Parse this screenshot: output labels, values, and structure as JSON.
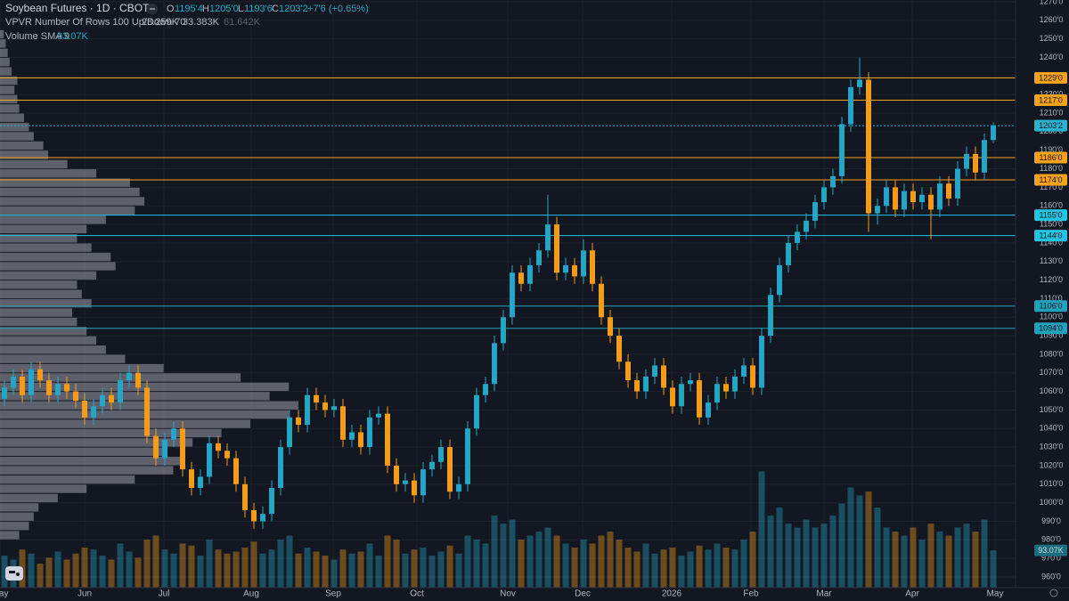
{
  "header": {
    "title": "Soybean Futures · 1D · CBOT",
    "o_label": "O",
    "open": "1195'4",
    "h_label": "H",
    "high": "1205'0",
    "l_label": "L",
    "low": "1193'6",
    "c_label": "C",
    "close": "1203'2",
    "change": "+7'6 (+0.65%)",
    "vpvr_label": "VPVR Number Of Rows 100 Up/Down 70",
    "vpvr_up": "28.259K",
    "vpvr_down": "33.383K",
    "vpvr_total": "61.642K",
    "volume_label": "Volume SMA 9",
    "volume_value": "93.07K"
  },
  "chart_data": {
    "type": "candlestick",
    "up_color": "#26a6c4",
    "down_color": "#f39c1b",
    "ylim": [
      960,
      1270
    ],
    "yticks": [
      {
        "value": 1270,
        "label": "1270'0"
      },
      {
        "value": 1260,
        "label": "1260'0"
      },
      {
        "value": 1250,
        "label": "1250'0"
      },
      {
        "value": 1240,
        "label": "1240'0"
      },
      {
        "value": 1230,
        "label": "1230'0"
      },
      {
        "value": 1220,
        "label": "1220'0"
      },
      {
        "value": 1210,
        "label": "1210'0"
      },
      {
        "value": 1200,
        "label": "1200'0"
      },
      {
        "value": 1190,
        "label": "1190'0"
      },
      {
        "value": 1180,
        "label": "1180'0"
      },
      {
        "value": 1170,
        "label": "1170'0"
      },
      {
        "value": 1160,
        "label": "1160'0"
      },
      {
        "value": 1150,
        "label": "1150'0"
      },
      {
        "value": 1140,
        "label": "1140'0"
      },
      {
        "value": 1130,
        "label": "1130'0"
      },
      {
        "value": 1120,
        "label": "1120'0"
      },
      {
        "value": 1110,
        "label": "1110'0"
      },
      {
        "value": 1100,
        "label": "1100'0"
      },
      {
        "value": 1090,
        "label": "1090'0"
      },
      {
        "value": 1080,
        "label": "1080'0"
      },
      {
        "value": 1070,
        "label": "1070'0"
      },
      {
        "value": 1060,
        "label": "1060'0"
      },
      {
        "value": 1050,
        "label": "1050'0"
      },
      {
        "value": 1040,
        "label": "1040'0"
      },
      {
        "value": 1030,
        "label": "1030'0"
      },
      {
        "value": 1020,
        "label": "1020'0"
      },
      {
        "value": 1010,
        "label": "1010'0"
      },
      {
        "value": 1000,
        "label": "1000'0"
      },
      {
        "value": 990,
        "label": "990'0"
      },
      {
        "value": 980,
        "label": "980'0"
      },
      {
        "value": 970,
        "label": "970'0"
      },
      {
        "value": 960,
        "label": "960'0"
      }
    ],
    "xticks": [
      {
        "value": -0.5,
        "label": "May"
      },
      {
        "value": 9,
        "label": "Jun"
      },
      {
        "value": 17.9,
        "label": "Jul"
      },
      {
        "value": 27.7,
        "label": "Aug"
      },
      {
        "value": 36.9,
        "label": "Sep"
      },
      {
        "value": 46.3,
        "label": "Oct"
      },
      {
        "value": 56.5,
        "label": "Nov"
      },
      {
        "value": 64.9,
        "label": "Dec"
      },
      {
        "value": 74.9,
        "label": "2026"
      },
      {
        "value": 83.8,
        "label": "Feb"
      },
      {
        "value": 92,
        "label": "Mar"
      },
      {
        "value": 101.9,
        "label": "Apr"
      },
      {
        "value": 111.2,
        "label": "May"
      }
    ],
    "levels": [
      {
        "value": 1229,
        "label": "1229'0",
        "color": "#f7a21b"
      },
      {
        "value": 1217,
        "label": "1217'0",
        "color": "#f7a21b"
      },
      {
        "value": 1203.25,
        "label": "1203'2",
        "color": "#2ab3cf",
        "dashed": true
      },
      {
        "value": 1186,
        "label": "1186'0",
        "color": "#f7a21b"
      },
      {
        "value": 1174,
        "label": "1174'0",
        "color": "#f7a21b"
      },
      {
        "value": 1155,
        "label": "1155'0",
        "color": "#22c4e0"
      },
      {
        "value": 1144,
        "label": "1144'0",
        "color": "#22c4e0"
      },
      {
        "value": 1106,
        "label": "1106'0",
        "color": "#1fa3bd"
      },
      {
        "value": 1094,
        "label": "1094'0",
        "color": "#1fa3bd"
      }
    ],
    "ohlc": [
      [
        1056,
        1066,
        1052,
        1062
      ],
      [
        1062,
        1072,
        1058,
        1068
      ],
      [
        1068,
        1072,
        1054,
        1058
      ],
      [
        1058,
        1076,
        1054,
        1072
      ],
      [
        1072,
        1076,
        1062,
        1066
      ],
      [
        1066,
        1070,
        1054,
        1058
      ],
      [
        1058,
        1068,
        1054,
        1064
      ],
      [
        1064,
        1068,
        1056,
        1060
      ],
      [
        1060,
        1064,
        1051,
        1055
      ],
      [
        1055,
        1059,
        1042,
        1046
      ],
      [
        1046,
        1056,
        1042,
        1052
      ],
      [
        1052,
        1062,
        1048,
        1058
      ],
      [
        1058,
        1062,
        1050,
        1054
      ],
      [
        1054,
        1070,
        1050,
        1066
      ],
      [
        1066,
        1074,
        1062,
        1070
      ],
      [
        1070,
        1074,
        1058,
        1062
      ],
      [
        1062,
        1066,
        1032,
        1036
      ],
      [
        1036,
        1040,
        1020,
        1024
      ],
      [
        1024,
        1038,
        1020,
        1034
      ],
      [
        1034,
        1044,
        1030,
        1040
      ],
      [
        1040,
        1044,
        1014,
        1018
      ],
      [
        1018,
        1022,
        1004,
        1008
      ],
      [
        1008,
        1018,
        1004,
        1014
      ],
      [
        1014,
        1036,
        1010,
        1032
      ],
      [
        1032,
        1036,
        1024,
        1028
      ],
      [
        1028,
        1032,
        1020,
        1024
      ],
      [
        1024,
        1028,
        1006,
        1010
      ],
      [
        1010,
        1014,
        992,
        996
      ],
      [
        996,
        1000,
        986,
        990
      ],
      [
        990,
        998,
        986,
        994
      ],
      [
        994,
        1012,
        990,
        1008
      ],
      [
        1008,
        1034,
        1004,
        1030
      ],
      [
        1030,
        1050,
        1026,
        1046
      ],
      [
        1046,
        1050,
        1038,
        1042
      ],
      [
        1042,
        1062,
        1038,
        1058
      ],
      [
        1058,
        1062,
        1050,
        1054
      ],
      [
        1054,
        1058,
        1046,
        1050
      ],
      [
        1050,
        1056,
        1046,
        1052
      ],
      [
        1052,
        1056,
        1030,
        1034
      ],
      [
        1034,
        1042,
        1030,
        1038
      ],
      [
        1038,
        1042,
        1026,
        1030
      ],
      [
        1030,
        1050,
        1026,
        1046
      ],
      [
        1046,
        1052,
        1042,
        1048
      ],
      [
        1048,
        1052,
        1016,
        1020
      ],
      [
        1020,
        1024,
        1006,
        1010
      ],
      [
        1010,
        1016,
        1006,
        1012
      ],
      [
        1012,
        1016,
        1000,
        1004
      ],
      [
        1004,
        1022,
        1000,
        1018
      ],
      [
        1018,
        1026,
        1014,
        1022
      ],
      [
        1022,
        1034,
        1018,
        1030
      ],
      [
        1030,
        1034,
        1002,
        1006
      ],
      [
        1006,
        1014,
        1002,
        1010
      ],
      [
        1010,
        1044,
        1006,
        1040
      ],
      [
        1040,
        1062,
        1036,
        1058
      ],
      [
        1058,
        1068,
        1054,
        1064
      ],
      [
        1064,
        1090,
        1060,
        1086
      ],
      [
        1086,
        1104,
        1082,
        1100
      ],
      [
        1100,
        1128,
        1096,
        1124
      ],
      [
        1124,
        1128,
        1114,
        1118
      ],
      [
        1118,
        1132,
        1114,
        1128
      ],
      [
        1128,
        1140,
        1124,
        1136
      ],
      [
        1136,
        1166,
        1132,
        1150
      ],
      [
        1150,
        1154,
        1120,
        1124
      ],
      [
        1124,
        1132,
        1120,
        1128
      ],
      [
        1128,
        1132,
        1118,
        1122
      ],
      [
        1122,
        1142,
        1118,
        1136
      ],
      [
        1136,
        1140,
        1114,
        1118
      ],
      [
        1118,
        1122,
        1096,
        1100
      ],
      [
        1100,
        1104,
        1086,
        1090
      ],
      [
        1090,
        1094,
        1072,
        1076
      ],
      [
        1076,
        1080,
        1062,
        1066
      ],
      [
        1066,
        1070,
        1056,
        1060
      ],
      [
        1060,
        1072,
        1056,
        1068
      ],
      [
        1068,
        1078,
        1064,
        1074
      ],
      [
        1074,
        1078,
        1058,
        1062
      ],
      [
        1062,
        1066,
        1048,
        1052
      ],
      [
        1052,
        1068,
        1048,
        1064
      ],
      [
        1064,
        1070,
        1060,
        1066
      ],
      [
        1066,
        1070,
        1042,
        1046
      ],
      [
        1046,
        1058,
        1042,
        1054
      ],
      [
        1054,
        1068,
        1050,
        1064
      ],
      [
        1064,
        1068,
        1056,
        1060
      ],
      [
        1060,
        1072,
        1056,
        1068
      ],
      [
        1068,
        1078,
        1064,
        1074
      ],
      [
        1074,
        1078,
        1058,
        1062
      ],
      [
        1062,
        1094,
        1058,
        1090
      ],
      [
        1090,
        1116,
        1086,
        1112
      ],
      [
        1112,
        1132,
        1108,
        1128
      ],
      [
        1128,
        1144,
        1124,
        1140
      ],
      [
        1140,
        1150,
        1136,
        1146
      ],
      [
        1146,
        1156,
        1142,
        1152
      ],
      [
        1152,
        1166,
        1148,
        1162
      ],
      [
        1162,
        1174,
        1158,
        1170
      ],
      [
        1170,
        1180,
        1166,
        1176
      ],
      [
        1176,
        1208,
        1172,
        1204
      ],
      [
        1204,
        1228,
        1200,
        1224
      ],
      [
        1224,
        1240,
        1220,
        1228
      ],
      [
        1228,
        1232,
        1146,
        1156
      ],
      [
        1156,
        1164,
        1150,
        1160
      ],
      [
        1160,
        1174,
        1156,
        1170
      ],
      [
        1170,
        1174,
        1154,
        1158
      ],
      [
        1158,
        1172,
        1154,
        1168
      ],
      [
        1168,
        1172,
        1158,
        1162
      ],
      [
        1162,
        1170,
        1158,
        1166
      ],
      [
        1166,
        1170,
        1142,
        1158
      ],
      [
        1158,
        1176,
        1154,
        1172
      ],
      [
        1172,
        1176,
        1160,
        1164
      ],
      [
        1164,
        1184,
        1160,
        1180
      ],
      [
        1180,
        1192,
        1176,
        1188
      ],
      [
        1188,
        1192,
        1174,
        1178
      ],
      [
        1178,
        1199,
        1174,
        1195.5
      ],
      [
        1195.5,
        1205,
        1193.75,
        1203.25
      ]
    ],
    "volume": {
      "ylim": [
        0,
        300
      ],
      "values": [
        80,
        70,
        95,
        85,
        60,
        75,
        90,
        70,
        85,
        100,
        95,
        80,
        70,
        110,
        90,
        75,
        120,
        130,
        95,
        85,
        110,
        105,
        80,
        120,
        95,
        85,
        90,
        100,
        115,
        85,
        95,
        120,
        130,
        85,
        100,
        90,
        80,
        70,
        95,
        85,
        90,
        110,
        80,
        130,
        120,
        85,
        95,
        100,
        80,
        90,
        105,
        85,
        130,
        120,
        110,
        180,
        160,
        170,
        120,
        130,
        140,
        150,
        130,
        110,
        100,
        120,
        110,
        130,
        140,
        120,
        100,
        90,
        110,
        85,
        95,
        100,
        80,
        90,
        105,
        95,
        110,
        100,
        95,
        120,
        140,
        290,
        180,
        200,
        160,
        150,
        170,
        150,
        160,
        180,
        210,
        250,
        230,
        240,
        200,
        150,
        140,
        130,
        150,
        120,
        160,
        140,
        130,
        150,
        160,
        140,
        170,
        93.07
      ]
    },
    "volume_profile": {
      "color": "#787b86",
      "bins": [
        980,
        985,
        990,
        995,
        1000,
        1005,
        1010,
        1015,
        1020,
        1025,
        1030,
        1035,
        1040,
        1045,
        1050,
        1055,
        1060,
        1065,
        1070,
        1075,
        1080,
        1085,
        1090,
        1095,
        1100,
        1105,
        1110,
        1115,
        1120,
        1125,
        1130,
        1135,
        1140,
        1145,
        1150,
        1155,
        1160,
        1165,
        1170,
        1175,
        1180,
        1185,
        1190,
        1195,
        1200,
        1205,
        1210,
        1215,
        1220,
        1225,
        1230,
        1235,
        1240,
        1245,
        1250,
        1255
      ],
      "values": [
        20,
        30,
        35,
        40,
        60,
        90,
        140,
        180,
        190,
        170,
        200,
        230,
        260,
        300,
        310,
        280,
        300,
        250,
        170,
        130,
        110,
        100,
        90,
        80,
        75,
        95,
        85,
        80,
        100,
        120,
        115,
        95,
        80,
        90,
        110,
        140,
        150,
        145,
        135,
        100,
        70,
        50,
        45,
        35,
        30,
        25,
        20,
        18,
        15,
        18,
        12,
        10,
        8,
        6,
        4
      ]
    }
  }
}
